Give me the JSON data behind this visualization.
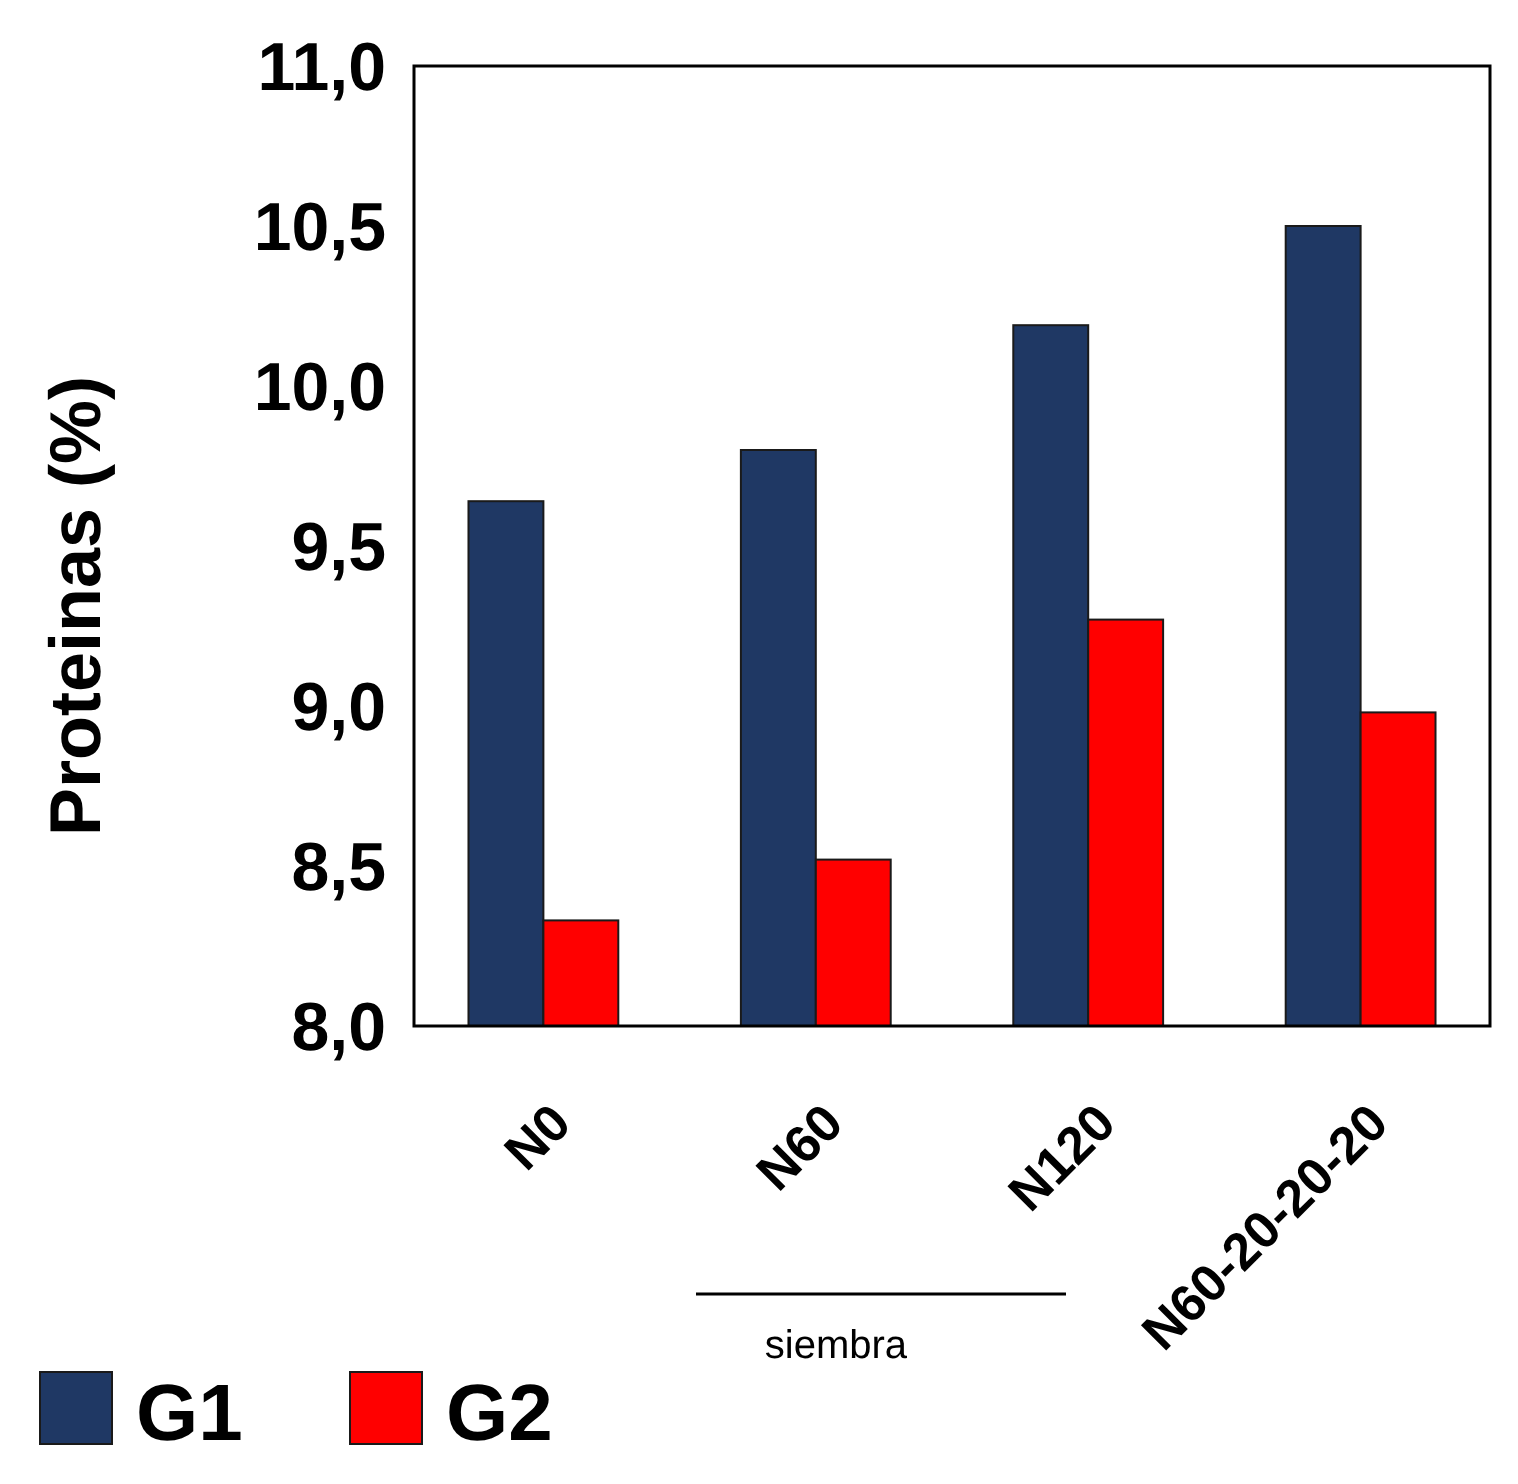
{
  "chart_data": {
    "type": "bar",
    "ylabel": "Proteinas (%)",
    "categories": [
      "N0",
      "N60",
      "N120",
      "N60-20-20-20"
    ],
    "series": [
      {
        "name": "G1",
        "color": "#1f3864",
        "values": [
          9.64,
          9.8,
          10.19,
          10.5
        ]
      },
      {
        "name": "G2",
        "color": "#ff0000",
        "values": [
          8.33,
          8.52,
          9.27,
          8.98
        ]
      }
    ],
    "ylim": [
      8,
      11
    ],
    "yticks": [
      {
        "value": 8,
        "label": "8,0"
      },
      {
        "value": 8.5,
        "label": "8,5"
      },
      {
        "value": 9,
        "label": "9,0"
      },
      {
        "value": 9.5,
        "label": "9,5"
      },
      {
        "value": 10,
        "label": "10,0"
      },
      {
        "value": 10.5,
        "label": "10,5"
      },
      {
        "value": 11,
        "label": "11,0"
      }
    ],
    "annotations": [
      "siembra"
    ],
    "legend": "bottom left",
    "grid": false
  }
}
